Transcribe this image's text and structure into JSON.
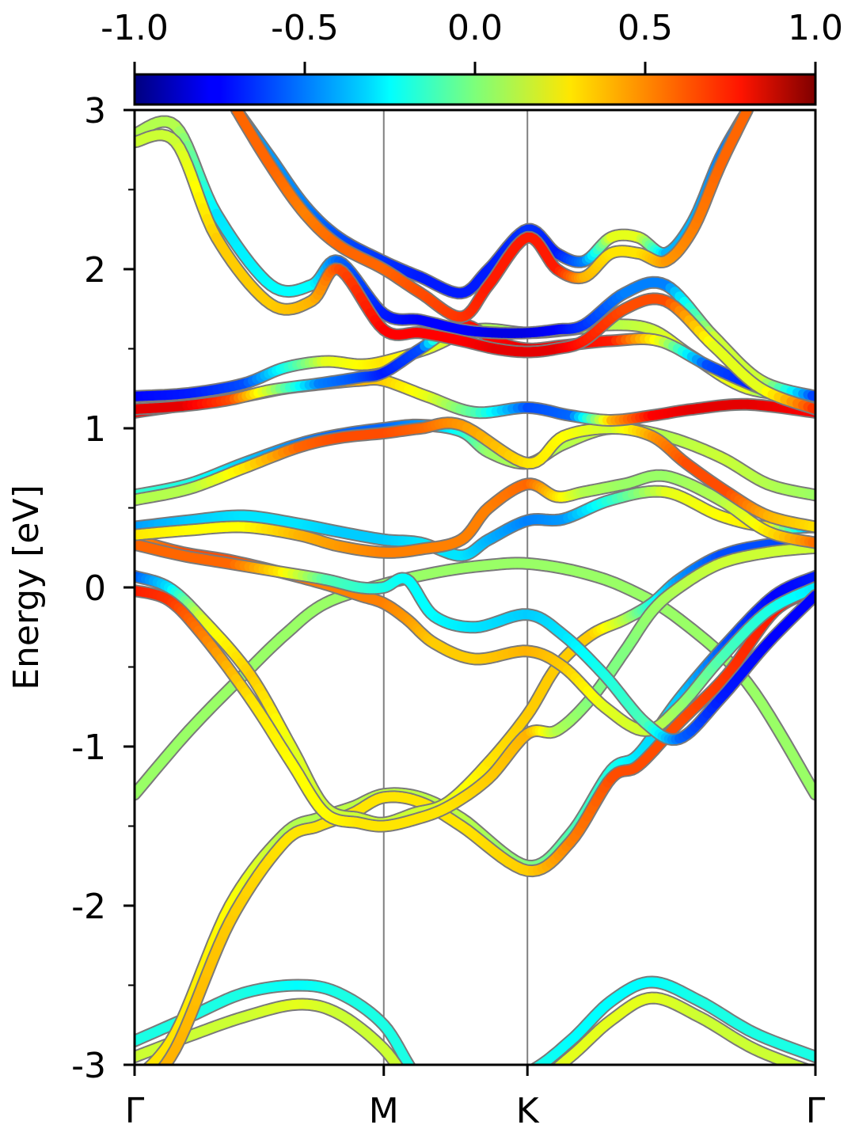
{
  "chart_data": {
    "type": "line",
    "subtype": "band-structure",
    "title": "",
    "xlabel": "",
    "ylabel": "Energy [eV]",
    "ylim": [
      -3,
      3
    ],
    "yticks": [
      -3,
      -2,
      -1,
      0,
      1,
      2,
      3
    ],
    "yminor_ticks": [
      -2.5,
      -1.5,
      -0.5,
      0.5,
      1.5,
      2.5
    ],
    "xlim": [
      0,
      1
    ],
    "kpath": [
      {
        "label": "Γ",
        "x": 0.0
      },
      {
        "label": "M",
        "x": 0.366
      },
      {
        "label": "K",
        "x": 0.577
      },
      {
        "label": "Γ",
        "x": 1.0
      }
    ],
    "colorbar": {
      "colormap": "jet",
      "range": [
        -1.0,
        1.0
      ],
      "ticks": [
        "-1.0",
        "-0.5",
        "0.0",
        "0.5",
        "1.0"
      ],
      "position": "top"
    },
    "bands": [
      {
        "x": [
          0,
          0.08,
          0.16,
          0.22,
          0.28,
          0.366,
          0.45,
          0.52,
          0.577,
          0.65,
          0.72,
          0.8,
          0.9,
          1.0
        ],
        "y": [
          -1.3,
          -0.9,
          -0.55,
          -0.3,
          -0.1,
          0.02,
          0.1,
          0.14,
          0.15,
          0.1,
          0.0,
          -0.2,
          -0.6,
          -1.3
        ],
        "c": [
          0.05,
          0.05,
          0.05,
          0.05,
          0.05,
          0.05,
          0.05,
          0.05,
          0.05,
          0.05,
          0.05,
          0.05,
          0.05,
          0.05
        ]
      },
      {
        "x": [
          0,
          0.08,
          0.16,
          0.24,
          0.3,
          0.366,
          0.42,
          0.48,
          0.577,
          0.64,
          0.7,
          0.76,
          0.83,
          0.91,
          1.0
        ],
        "y": [
          -2.85,
          -2.7,
          -2.55,
          -2.5,
          -2.55,
          -2.75,
          -3.1,
          -3.2,
          -3.05,
          -2.85,
          -2.6,
          -2.48,
          -2.6,
          -2.8,
          -2.95
        ],
        "c": [
          -0.2,
          -0.2,
          -0.2,
          -0.25,
          -0.2,
          -0.2,
          -0.2,
          -0.2,
          -0.2,
          -0.25,
          -0.25,
          -0.25,
          -0.2,
          -0.2,
          -0.2
        ]
      },
      {
        "x": [
          0,
          0.08,
          0.16,
          0.24,
          0.3,
          0.366,
          0.42,
          0.48,
          0.577,
          0.64,
          0.7,
          0.76,
          0.83,
          0.91,
          1.0
        ],
        "y": [
          -2.95,
          -2.82,
          -2.7,
          -2.62,
          -2.68,
          -2.9,
          -3.2,
          -3.3,
          -3.15,
          -2.95,
          -2.72,
          -2.58,
          -2.7,
          -2.9,
          -3.05
        ],
        "c": [
          0.15,
          0.15,
          0.15,
          0.2,
          0.15,
          0.15,
          0.15,
          0.15,
          0.15,
          0.2,
          0.2,
          0.2,
          0.15,
          0.15,
          0.15
        ]
      },
      {
        "x": [
          0,
          0.06,
          0.14,
          0.22,
          0.27,
          0.32,
          0.366,
          0.42,
          0.48,
          0.577,
          0.64,
          0.7,
          0.74,
          0.8,
          0.87,
          0.94,
          1.0
        ],
        "y": [
          -3.1,
          -2.8,
          -2.0,
          -1.55,
          -1.45,
          -1.38,
          -1.3,
          -1.32,
          -1.45,
          -1.75,
          -1.55,
          -1.15,
          -1.05,
          -0.7,
          -0.35,
          -0.05,
          0.07
        ],
        "c": [
          0.3,
          0.3,
          0.25,
          0.1,
          0.1,
          0.12,
          0.12,
          0.12,
          0.12,
          0.0,
          -0.1,
          -0.2,
          -0.3,
          -0.35,
          -0.6,
          -0.75,
          -0.7
        ]
      },
      {
        "x": [
          0,
          0.06,
          0.14,
          0.22,
          0.27,
          0.32,
          0.366,
          0.42,
          0.48,
          0.577,
          0.64,
          0.7,
          0.74,
          0.8,
          0.87,
          0.94,
          1.0
        ],
        "y": [
          -3.2,
          -2.9,
          -2.1,
          -1.6,
          -1.5,
          -1.42,
          -1.32,
          -1.35,
          -1.5,
          -1.78,
          -1.6,
          -1.2,
          -1.12,
          -0.85,
          -0.55,
          -0.15,
          -0.02
        ],
        "c": [
          0.4,
          0.4,
          0.35,
          0.3,
          0.3,
          0.3,
          0.3,
          0.3,
          0.3,
          0.35,
          0.5,
          0.6,
          0.6,
          0.6,
          0.65,
          0.7,
          0.7
        ]
      },
      {
        "x": [
          0,
          0.05,
          0.1,
          0.17,
          0.23,
          0.28,
          0.33,
          0.366,
          0.41,
          0.46,
          0.52,
          0.577,
          0.62,
          0.67,
          0.72,
          0.76,
          0.8,
          0.86,
          0.93,
          1.0
        ],
        "y": [
          0.07,
          0.0,
          -0.2,
          -0.55,
          -1.0,
          -1.38,
          -1.45,
          -1.48,
          -1.42,
          -1.35,
          -1.1,
          -0.8,
          -0.5,
          -0.3,
          -0.2,
          -0.1,
          0.05,
          0.2,
          0.27,
          0.28
        ],
        "c": [
          -0.6,
          -0.3,
          0.2,
          0.35,
          0.2,
          0.15,
          0.15,
          0.15,
          0.15,
          0.2,
          0.3,
          0.35,
          0.35,
          0.35,
          0.1,
          -0.2,
          -0.45,
          -0.6,
          -0.6,
          -0.65
        ]
      },
      {
        "x": [
          0,
          0.05,
          0.1,
          0.17,
          0.23,
          0.28,
          0.33,
          0.366,
          0.41,
          0.46,
          0.52,
          0.577,
          0.62,
          0.67,
          0.72,
          0.76,
          0.8,
          0.86,
          0.93,
          1.0
        ],
        "y": [
          -0.02,
          -0.08,
          -0.3,
          -0.7,
          -1.1,
          -1.42,
          -1.48,
          -1.5,
          -1.46,
          -1.38,
          -1.2,
          -0.92,
          -0.9,
          -0.7,
          -0.4,
          -0.15,
          0.0,
          0.15,
          0.22,
          0.25
        ],
        "c": [
          0.7,
          0.65,
          0.5,
          0.3,
          0.25,
          0.25,
          0.3,
          0.3,
          0.3,
          0.3,
          0.35,
          0.4,
          0.1,
          0.0,
          0.0,
          0.05,
          0.1,
          0.15,
          0.15,
          0.15
        ]
      },
      {
        "x": [
          0,
          0.07,
          0.14,
          0.21,
          0.28,
          0.33,
          0.366,
          0.4,
          0.44,
          0.5,
          0.577,
          0.63,
          0.69,
          0.75,
          0.8,
          0.86,
          0.93,
          1.0
        ],
        "y": [
          0.3,
          0.22,
          0.17,
          0.1,
          0.02,
          -0.05,
          -0.1,
          -0.2,
          -0.35,
          -0.45,
          -0.4,
          -0.5,
          -0.75,
          -0.9,
          -0.75,
          -0.45,
          -0.15,
          0.0
        ],
        "c": [
          0.45,
          0.6,
          0.6,
          0.55,
          0.5,
          0.5,
          0.5,
          0.45,
          0.35,
          0.35,
          0.4,
          0.35,
          0.2,
          0.15,
          0.05,
          -0.1,
          -0.2,
          -0.3
        ]
      },
      {
        "x": [
          0,
          0.07,
          0.14,
          0.21,
          0.28,
          0.33,
          0.366,
          0.4,
          0.44,
          0.5,
          0.577,
          0.63,
          0.69,
          0.75,
          0.8,
          0.86,
          0.93,
          1.0
        ],
        "y": [
          0.27,
          0.2,
          0.15,
          0.1,
          0.05,
          0.0,
          0.0,
          0.05,
          -0.18,
          -0.25,
          -0.17,
          -0.3,
          -0.55,
          -0.85,
          -0.95,
          -0.7,
          -0.35,
          -0.05
        ],
        "c": [
          0.55,
          0.55,
          0.55,
          0.3,
          -0.1,
          -0.15,
          -0.2,
          -0.25,
          -0.25,
          -0.3,
          -0.35,
          -0.3,
          -0.2,
          -0.1,
          -0.55,
          -0.7,
          -0.75,
          -0.75
        ]
      },
      {
        "x": [
          0,
          0.08,
          0.16,
          0.24,
          0.3,
          0.366,
          0.42,
          0.48,
          0.52,
          0.577,
          0.63,
          0.7,
          0.78,
          0.86,
          0.93,
          1.0
        ],
        "y": [
          0.38,
          0.42,
          0.45,
          0.4,
          0.35,
          0.3,
          0.28,
          0.2,
          0.3,
          0.42,
          0.43,
          0.55,
          0.6,
          0.45,
          0.38,
          0.38
        ],
        "c": [
          -0.45,
          -0.35,
          -0.3,
          -0.3,
          -0.35,
          -0.35,
          -0.3,
          -0.3,
          -0.4,
          -0.5,
          -0.45,
          -0.15,
          0.2,
          0.25,
          0.3,
          -0.7
        ]
      },
      {
        "x": [
          0,
          0.08,
          0.16,
          0.24,
          0.3,
          0.366,
          0.42,
          0.48,
          0.52,
          0.577,
          0.62,
          0.66,
          0.72,
          0.78,
          0.86,
          0.93,
          1.0
        ],
        "y": [
          0.33,
          0.36,
          0.38,
          0.33,
          0.26,
          0.22,
          0.24,
          0.3,
          0.5,
          0.65,
          0.57,
          0.6,
          0.65,
          0.7,
          0.55,
          0.35,
          0.28
        ],
        "c": [
          0.3,
          0.25,
          0.25,
          0.4,
          0.45,
          0.5,
          0.5,
          0.5,
          0.5,
          0.55,
          0.3,
          0.1,
          0.05,
          0.05,
          0.1,
          0.3,
          0.55
        ]
      },
      {
        "x": [
          0,
          0.08,
          0.16,
          0.24,
          0.3,
          0.366,
          0.42,
          0.48,
          0.52,
          0.577,
          0.63,
          0.7,
          0.78,
          0.86,
          0.93,
          1.0
        ],
        "y": [
          0.58,
          0.65,
          0.78,
          0.9,
          0.96,
          1.0,
          1.02,
          0.98,
          0.85,
          0.78,
          0.9,
          1.0,
          0.95,
          0.82,
          0.65,
          0.58
        ],
        "c": [
          -0.15,
          -0.2,
          -0.35,
          -0.5,
          -0.55,
          -0.55,
          -0.45,
          -0.2,
          0.05,
          0.1,
          0.1,
          0.15,
          0.1,
          0.15,
          0.1,
          0.05
        ]
      },
      {
        "x": [
          0,
          0.08,
          0.16,
          0.24,
          0.3,
          0.366,
          0.42,
          0.48,
          0.577,
          0.63,
          0.7,
          0.76,
          0.81,
          0.87,
          0.93,
          1.0
        ],
        "y": [
          0.55,
          0.62,
          0.75,
          0.88,
          0.94,
          0.97,
          1.0,
          1.02,
          0.78,
          0.95,
          1.0,
          0.95,
          0.78,
          0.6,
          0.45,
          0.38
        ],
        "c": [
          0.1,
          0.1,
          0.3,
          0.55,
          0.6,
          0.6,
          0.55,
          0.45,
          0.3,
          0.25,
          0.15,
          0.45,
          0.6,
          0.6,
          0.4,
          0.3
        ]
      },
      {
        "x": [
          0,
          0.08,
          0.16,
          0.22,
          0.28,
          0.33,
          0.366,
          0.43,
          0.5,
          0.577,
          0.64,
          0.7,
          0.76,
          0.82,
          0.9,
          1.0
        ],
        "y": [
          1.1,
          1.15,
          1.2,
          1.25,
          1.28,
          1.3,
          1.3,
          1.2,
          1.1,
          1.13,
          1.08,
          1.05,
          1.08,
          1.12,
          1.15,
          1.1
        ],
        "c": [
          0.75,
          0.8,
          0.75,
          0.6,
          0.45,
          0.4,
          0.35,
          0.2,
          -0.1,
          -0.6,
          -0.55,
          0.4,
          0.75,
          0.8,
          0.8,
          0.75
        ]
      },
      {
        "x": [
          0,
          0.08,
          0.16,
          0.22,
          0.28,
          0.33,
          0.366,
          0.43,
          0.5,
          0.577,
          0.64,
          0.7,
          0.76,
          0.82,
          0.9,
          1.0
        ],
        "y": [
          1.2,
          1.22,
          1.28,
          1.38,
          1.42,
          1.4,
          1.42,
          1.5,
          1.62,
          1.6,
          1.62,
          1.65,
          1.62,
          1.45,
          1.25,
          1.2
        ],
        "c": [
          -0.75,
          -0.7,
          -0.6,
          -0.2,
          0.2,
          0.25,
          0.3,
          0.2,
          0.1,
          0.05,
          0.05,
          0.1,
          0.15,
          0.25,
          0.2,
          -0.7
        ]
      },
      {
        "x": [
          0,
          0.07,
          0.14,
          0.2,
          0.27,
          0.33,
          0.366,
          0.42,
          0.48,
          0.53,
          0.577,
          0.63,
          0.7,
          0.77,
          0.84,
          0.92,
          1.0
        ],
        "y": [
          1.12,
          1.14,
          1.18,
          1.24,
          1.28,
          1.32,
          1.35,
          1.5,
          1.65,
          1.55,
          1.5,
          1.52,
          1.55,
          1.55,
          1.4,
          1.25,
          1.15
        ],
        "c": [
          0.8,
          0.8,
          0.6,
          0.1,
          -0.5,
          -0.6,
          -0.7,
          -0.6,
          0.7,
          0.75,
          0.8,
          0.75,
          0.7,
          0.2,
          -0.6,
          -0.7,
          0.7
        ]
      },
      {
        "x": [
          0,
          0.06,
          0.12,
          0.2,
          0.26,
          0.3,
          0.366,
          0.42,
          0.48,
          0.53,
          0.577,
          0.62,
          0.66,
          0.72,
          0.78,
          0.85,
          0.92,
          1.0
        ],
        "y": [
          2.85,
          2.9,
          2.35,
          1.9,
          1.9,
          2.05,
          1.72,
          1.68,
          1.62,
          1.6,
          1.6,
          1.62,
          1.65,
          1.85,
          1.9,
          1.58,
          1.3,
          1.2
        ],
        "c": [
          0.1,
          0.1,
          -0.3,
          -0.25,
          -0.25,
          -0.55,
          -0.7,
          -0.75,
          -0.75,
          -0.8,
          -0.8,
          -0.75,
          -0.65,
          -0.5,
          -0.5,
          0.15,
          0.15,
          -0.7
        ]
      },
      {
        "x": [
          0,
          0.06,
          0.12,
          0.2,
          0.26,
          0.3,
          0.366,
          0.42,
          0.48,
          0.53,
          0.577,
          0.62,
          0.66,
          0.72,
          0.78,
          0.85,
          0.92,
          1.0
        ],
        "y": [
          2.8,
          2.8,
          2.2,
          1.78,
          1.8,
          2.0,
          1.62,
          1.6,
          1.55,
          1.5,
          1.48,
          1.5,
          1.55,
          1.75,
          1.8,
          1.52,
          1.25,
          1.12
        ],
        "c": [
          0.15,
          0.15,
          0.35,
          0.35,
          0.4,
          0.6,
          0.75,
          0.75,
          0.75,
          0.8,
          0.8,
          0.8,
          0.7,
          0.6,
          0.6,
          0.2,
          0.2,
          0.7
        ]
      },
      {
        "x": [
          0.15,
          0.2,
          0.25,
          0.3,
          0.366,
          0.42,
          0.48,
          0.52,
          0.577,
          0.62,
          0.66,
          0.7,
          0.74,
          0.78,
          0.82,
          0.86,
          0.9
        ],
        "y": [
          3.0,
          2.7,
          2.4,
          2.2,
          2.05,
          1.95,
          1.85,
          2.0,
          2.25,
          2.1,
          2.05,
          2.2,
          2.2,
          2.1,
          2.3,
          2.7,
          3.0
        ],
        "c": [
          -0.45,
          -0.45,
          -0.5,
          -0.6,
          -0.65,
          -0.7,
          -0.7,
          -0.7,
          -0.65,
          -0.7,
          -0.5,
          0.2,
          0.2,
          -0.4,
          -0.4,
          -0.5,
          -0.5
        ]
      },
      {
        "x": [
          0.15,
          0.2,
          0.25,
          0.3,
          0.366,
          0.42,
          0.48,
          0.52,
          0.577,
          0.62,
          0.66,
          0.7,
          0.74,
          0.78,
          0.82,
          0.86,
          0.9
        ],
        "y": [
          3.0,
          2.65,
          2.35,
          2.15,
          2.0,
          1.85,
          1.7,
          1.9,
          2.2,
          2.0,
          1.95,
          2.1,
          2.1,
          2.05,
          2.25,
          2.65,
          3.0
        ],
        "c": [
          0.55,
          0.55,
          0.5,
          0.55,
          0.55,
          0.6,
          0.65,
          0.7,
          0.7,
          0.7,
          0.4,
          0.3,
          0.3,
          0.45,
          0.5,
          0.55,
          0.55
        ]
      }
    ]
  }
}
